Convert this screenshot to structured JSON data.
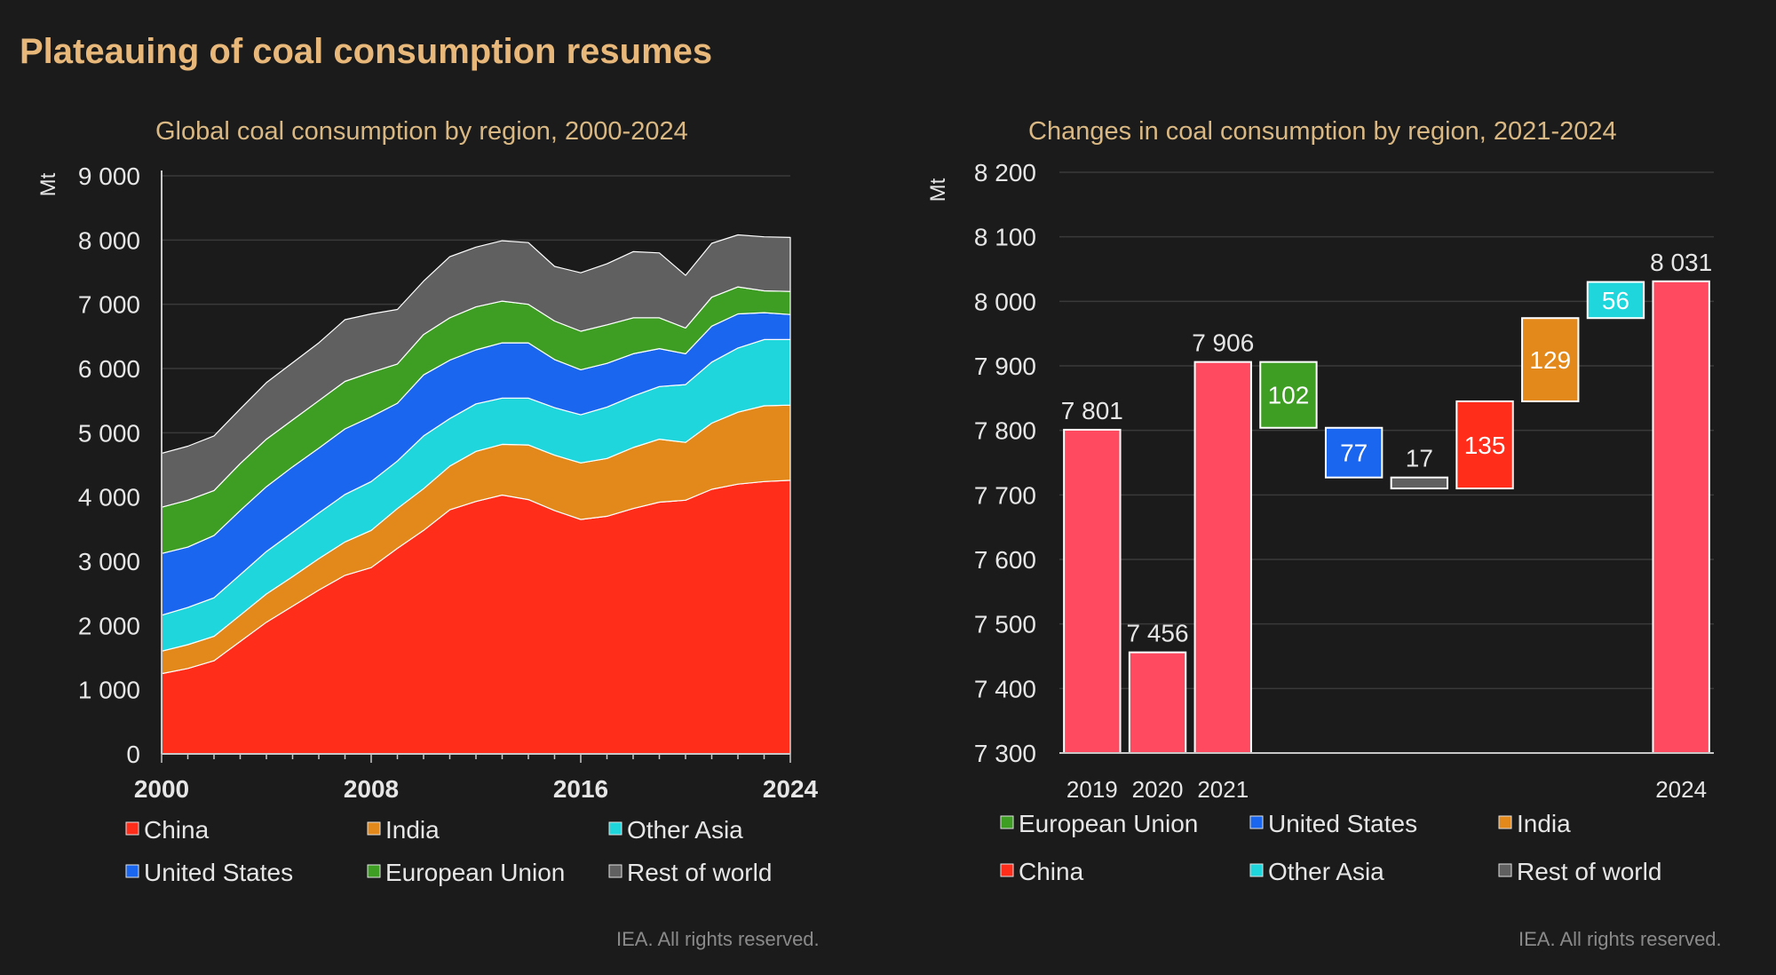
{
  "header": {
    "title": "Plateauing of coal consumption resumes"
  },
  "colors": {
    "China": "#ff2d1a",
    "India": "#e3891c",
    "Other Asia": "#1ed6dc",
    "United States": "#1a66ee",
    "European Union": "#3e9e24",
    "Rest of world": "#606060",
    "Total": "#ff4a60"
  },
  "chart_data": [
    {
      "type": "area",
      "title": "Global coal consumption by region, 2000-2024",
      "ylabel": "Mt",
      "xlabel": "",
      "ylim": [
        0,
        9000
      ],
      "yticks": [
        0,
        1000,
        2000,
        3000,
        4000,
        5000,
        6000,
        7000,
        8000,
        9000
      ],
      "ytick_labels": [
        "0",
        "1 000",
        "2 000",
        "3 000",
        "4 000",
        "5 000",
        "6 000",
        "7 000",
        "8 000",
        "9 000"
      ],
      "xlim": [
        2000,
        2024
      ],
      "xtick_labels": [
        "2000",
        "2008",
        "2016",
        "2024"
      ],
      "x": [
        2000,
        2001,
        2002,
        2003,
        2004,
        2005,
        2006,
        2007,
        2008,
        2009,
        2010,
        2011,
        2012,
        2013,
        2014,
        2015,
        2016,
        2017,
        2018,
        2019,
        2020,
        2021,
        2022,
        2023,
        2024
      ],
      "stacked": true,
      "grid": true,
      "legend_position": "bottom",
      "series": [
        {
          "name": "China",
          "values": [
            1250,
            1330,
            1450,
            1750,
            2050,
            2300,
            2550,
            2780,
            2900,
            3200,
            3480,
            3800,
            3930,
            4030,
            3960,
            3790,
            3650,
            3700,
            3820,
            3920,
            3950,
            4120,
            4200,
            4240,
            4260
          ]
        },
        {
          "name": "India",
          "values": [
            350,
            370,
            380,
            410,
            440,
            460,
            490,
            520,
            580,
            620,
            650,
            680,
            780,
            790,
            850,
            860,
            880,
            900,
            950,
            980,
            900,
            1030,
            1120,
            1180,
            1170
          ]
        },
        {
          "name": "Other Asia",
          "values": [
            560,
            580,
            600,
            630,
            660,
            690,
            710,
            740,
            760,
            740,
            820,
            740,
            740,
            720,
            730,
            740,
            750,
            800,
            800,
            820,
            900,
            950,
            1000,
            1030,
            1020
          ]
        },
        {
          "name": "United States",
          "values": [
            960,
            940,
            970,
            1000,
            1010,
            1020,
            1010,
            1020,
            1010,
            900,
            950,
            910,
            840,
            860,
            860,
            750,
            700,
            680,
            660,
            590,
            480,
            560,
            530,
            420,
            390
          ]
        },
        {
          "name": "European Union",
          "values": [
            720,
            730,
            700,
            730,
            740,
            730,
            740,
            740,
            690,
            610,
            630,
            660,
            670,
            650,
            600,
            600,
            600,
            600,
            560,
            480,
            400,
            450,
            420,
            340,
            360
          ]
        },
        {
          "name": "Rest of world",
          "values": [
            840,
            840,
            850,
            850,
            880,
            890,
            900,
            960,
            910,
            850,
            830,
            950,
            930,
            940,
            960,
            850,
            910,
            950,
            1030,
            1010,
            820,
            840,
            810,
            840,
            840
          ]
        }
      ],
      "legend": [
        "China",
        "India",
        "Other Asia",
        "United States",
        "European Union",
        "Rest of world"
      ],
      "footer": "IEA. All rights reserved."
    },
    {
      "type": "bar",
      "subtype": "waterfall",
      "title": "Changes in coal consumption by region, 2021-2024",
      "ylabel": "Mt",
      "xlabel": "",
      "ylim": [
        7300,
        8200
      ],
      "yticks": [
        7300,
        7400,
        7500,
        7600,
        7700,
        7800,
        7900,
        8000,
        8100,
        8200
      ],
      "ytick_labels": [
        "7 300",
        "7 400",
        "7 500",
        "7 600",
        "7 700",
        "7 800",
        "7 900",
        "8 000",
        "8 100",
        "8 200"
      ],
      "grid": true,
      "legend_position": "bottom",
      "bars": [
        {
          "category": "2019",
          "kind": "total",
          "series": "Total",
          "base": 7300,
          "top": 7801,
          "label": "7 801"
        },
        {
          "category": "2020",
          "kind": "total",
          "series": "Total",
          "base": 7300,
          "top": 7456,
          "label": "7 456"
        },
        {
          "category": "2021",
          "kind": "total",
          "series": "Total",
          "base": 7300,
          "top": 7906,
          "label": "7 906"
        },
        {
          "category": "",
          "kind": "change",
          "series": "European Union",
          "base": 7804,
          "top": 7906,
          "label": "102",
          "label_pos": "inside"
        },
        {
          "category": "",
          "kind": "change",
          "series": "United States",
          "base": 7727,
          "top": 7804,
          "label": "77",
          "label_pos": "inside"
        },
        {
          "category": "",
          "kind": "change",
          "series": "Rest of world",
          "base": 7710,
          "top": 7727,
          "label": "17",
          "label_pos": "above"
        },
        {
          "category": "",
          "kind": "change",
          "series": "China",
          "base": 7710,
          "top": 7845,
          "label": "135",
          "label_pos": "inside"
        },
        {
          "category": "",
          "kind": "change",
          "series": "India",
          "base": 7845,
          "top": 7974,
          "label": "129",
          "label_pos": "inside"
        },
        {
          "category": "",
          "kind": "change",
          "series": "Other Asia",
          "base": 7974,
          "top": 8030,
          "label": "56",
          "label_pos": "inside"
        },
        {
          "category": "2024",
          "kind": "total",
          "series": "Total",
          "base": 7300,
          "top": 8031,
          "label": "8 031"
        }
      ],
      "legend": [
        "European Union",
        "United States",
        "India",
        "China",
        "Other Asia",
        "Rest of world"
      ],
      "footer": "IEA. All rights reserved."
    }
  ]
}
